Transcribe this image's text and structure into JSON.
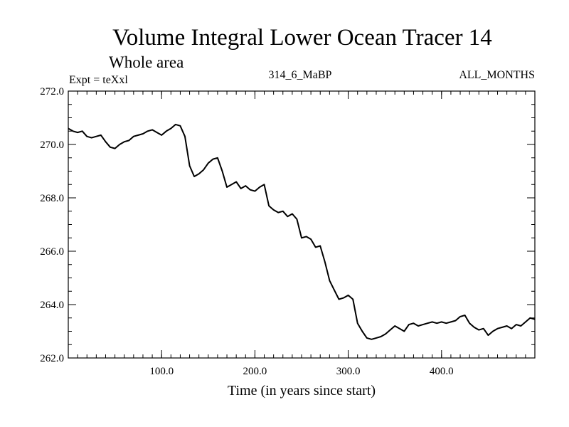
{
  "chart_data": {
    "type": "line",
    "title": "Volume Integral Lower Ocean Tracer 14",
    "subtitle": "Whole area",
    "experiment": "Expt = teXxl",
    "period": "314_6_MaBP",
    "months": "ALL_MONTHS",
    "xlabel": "Time (in years since start)",
    "ylabel": "",
    "xlim": [
      0,
      500
    ],
    "ylim": [
      262,
      272
    ],
    "xticks": [
      {
        "value": 100,
        "label": "100.0"
      },
      {
        "value": 200,
        "label": "200.0"
      },
      {
        "value": 300,
        "label": "300.0"
      },
      {
        "value": 400,
        "label": "400.0"
      }
    ],
    "yticks": [
      {
        "value": 262,
        "label": "262.0"
      },
      {
        "value": 264,
        "label": "264.0"
      },
      {
        "value": 266,
        "label": "266.0"
      },
      {
        "value": 268,
        "label": "268.0"
      },
      {
        "value": 270,
        "label": "270.0"
      },
      {
        "value": 272,
        "label": "272.0"
      }
    ],
    "x_minor_step": 10,
    "y_minor_step": 0.5,
    "series": [
      {
        "name": "Lower Ocean Tracer 14",
        "color": "#000000",
        "x": [
          0,
          5,
          10,
          15,
          20,
          25,
          30,
          35,
          40,
          45,
          50,
          55,
          60,
          65,
          70,
          75,
          80,
          85,
          90,
          95,
          100,
          105,
          110,
          115,
          120,
          125,
          130,
          135,
          140,
          145,
          150,
          155,
          160,
          165,
          170,
          175,
          180,
          185,
          190,
          195,
          200,
          205,
          210,
          215,
          220,
          225,
          230,
          235,
          240,
          245,
          250,
          255,
          260,
          265,
          270,
          275,
          280,
          285,
          290,
          295,
          300,
          305,
          310,
          315,
          320,
          325,
          330,
          335,
          340,
          345,
          350,
          355,
          360,
          365,
          370,
          375,
          380,
          385,
          390,
          395,
          400,
          405,
          410,
          415,
          420,
          425,
          430,
          435,
          440,
          445,
          450,
          455,
          460,
          465,
          470,
          475,
          480,
          485,
          490,
          495,
          500
        ],
        "values": [
          270.6,
          270.5,
          270.45,
          270.5,
          270.3,
          270.25,
          270.3,
          270.35,
          270.1,
          269.9,
          269.85,
          270.0,
          270.1,
          270.15,
          270.3,
          270.35,
          270.4,
          270.5,
          270.55,
          270.45,
          270.35,
          270.5,
          270.6,
          270.75,
          270.7,
          270.3,
          269.2,
          268.8,
          268.9,
          269.05,
          269.3,
          269.45,
          269.5,
          269.0,
          268.4,
          268.5,
          268.6,
          268.35,
          268.45,
          268.3,
          268.25,
          268.4,
          268.5,
          267.7,
          267.55,
          267.45,
          267.5,
          267.3,
          267.4,
          267.2,
          266.5,
          266.55,
          266.45,
          266.15,
          266.2,
          265.6,
          264.9,
          264.55,
          264.2,
          264.25,
          264.35,
          264.2,
          263.3,
          263.0,
          262.75,
          262.7,
          262.75,
          262.8,
          262.9,
          263.05,
          263.2,
          263.1,
          263.0,
          263.25,
          263.3,
          263.2,
          263.25,
          263.3,
          263.35,
          263.3,
          263.35,
          263.3,
          263.35,
          263.4,
          263.55,
          263.6,
          263.3,
          263.15,
          263.05,
          263.1,
          262.85,
          263.0,
          263.1,
          263.15,
          263.2,
          263.1,
          263.25,
          263.2,
          263.35,
          263.5,
          263.45
        ]
      }
    ]
  }
}
